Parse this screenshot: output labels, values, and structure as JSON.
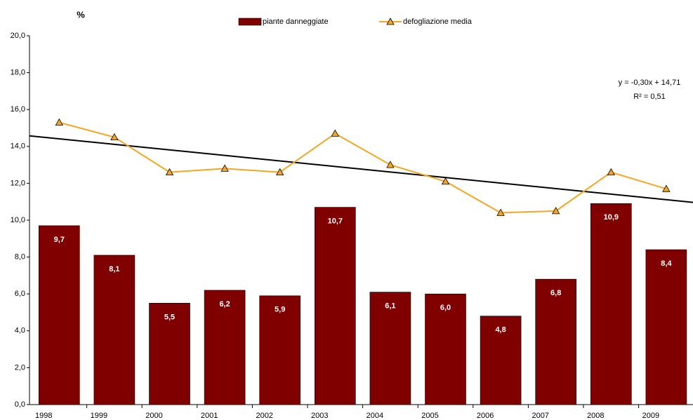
{
  "chart_data": {
    "type": "bar_line",
    "y_axis_label": "%",
    "categories": [
      "1998",
      "1999",
      "2000",
      "2001",
      "2002",
      "2003",
      "2004",
      "2005",
      "2006",
      "2007",
      "2008",
      "2009"
    ],
    "series": [
      {
        "name": "piante danneggiate",
        "type": "bar",
        "color": "#800000",
        "values": [
          9.7,
          8.1,
          5.5,
          6.2,
          5.9,
          10.7,
          6.1,
          6.0,
          4.8,
          6.8,
          10.9,
          8.4
        ],
        "value_labels": [
          "9,7",
          "8,1",
          "5,5",
          "6,2",
          "5,9",
          "10,7",
          "6,1",
          "6,0",
          "4,8",
          "6,8",
          "10,9",
          "8,4"
        ]
      },
      {
        "name": "defogliazione media",
        "type": "line",
        "color": "#f5a623",
        "values": [
          15.3,
          14.5,
          12.6,
          12.8,
          12.6,
          14.7,
          13.0,
          12.1,
          10.4,
          10.5,
          12.6,
          11.7
        ]
      }
    ],
    "trendline": {
      "slope": -0.3,
      "intercept": 14.71,
      "equation": "y = -0,30x + 14,71",
      "r2": "R² = 0,51"
    },
    "ylim": [
      0,
      20
    ],
    "yticks": [
      {
        "value": 0,
        "label": "0,0"
      },
      {
        "value": 2,
        "label": "2,0"
      },
      {
        "value": 4,
        "label": "4,0"
      },
      {
        "value": 6,
        "label": "6,0"
      },
      {
        "value": 8,
        "label": "8,0"
      },
      {
        "value": 10,
        "label": "10,0"
      },
      {
        "value": 12,
        "label": "12,0"
      },
      {
        "value": 14,
        "label": "14,0"
      },
      {
        "value": 16,
        "label": "16,0"
      },
      {
        "value": 18,
        "label": "18,0"
      },
      {
        "value": 20,
        "label": "20,0"
      }
    ]
  }
}
